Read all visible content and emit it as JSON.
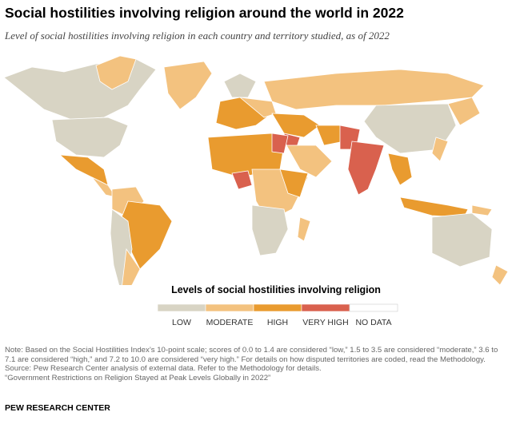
{
  "header": {
    "title": "Social hostilities involving religion around the world in 2022",
    "subtitle": "Level of social hostilities involving religion in each country and territory studied, as of 2022"
  },
  "legend": {
    "title": "Levels of social hostilities involving religion",
    "items": [
      {
        "label": "LOW",
        "color": "#d8d4c4"
      },
      {
        "label": "MODERATE",
        "color": "#f3c27f"
      },
      {
        "label": "HIGH",
        "color": "#e99b2f"
      },
      {
        "label": "VERY HIGH",
        "color": "#d9614e"
      },
      {
        "label": "NO DATA",
        "color": "#ffffff"
      }
    ]
  },
  "notes": [
    "Note: Based on the Social Hostilities Index’s 10-point scale; scores of 0.0 to 1.4 are considered “low,” 1.5 to 3.5 are considered “moderate,” 3.6 to 7.1 are considered “high,” and 7.2 to 10.0 are considered “very high.” For details on how disputed territories are coded, read the Methodology.",
    "Source: Pew Research Center analysis of external data. Refer to the Methodology for details.",
    "“Government Restrictions on Religion Stayed at Peak Levels Globally in 2022”"
  ],
  "footer": "PEW RESEARCH CENTER"
}
